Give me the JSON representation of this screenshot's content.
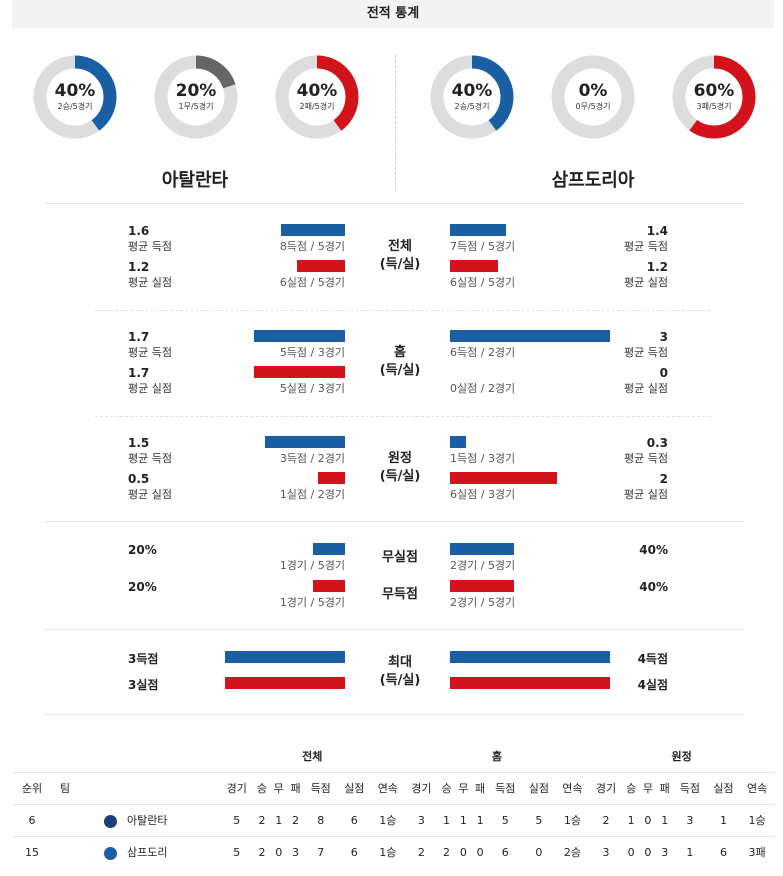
{
  "title": "전적 통계",
  "colors": {
    "blue": "#1a5fa3",
    "red": "#d2131c",
    "gray": "#666666",
    "track": "#dddddd"
  },
  "donuts": [
    {
      "pct_text": "40%",
      "sub": "2승/5경기",
      "fraction": 0.4,
      "color": "#1a5fa3"
    },
    {
      "pct_text": "20%",
      "sub": "1무/5경기",
      "fraction": 0.2,
      "color": "#666666"
    },
    {
      "pct_text": "40%",
      "sub": "2패/5경기",
      "fraction": 0.4,
      "color": "#d2131c"
    },
    {
      "pct_text": "40%",
      "sub": "2승/5경기",
      "fraction": 0.4,
      "color": "#1a5fa3"
    },
    {
      "pct_text": "0%",
      "sub": "0무/5경기",
      "fraction": 0.0,
      "color": "#666666"
    },
    {
      "pct_text": "60%",
      "sub": "3패/5경기",
      "fraction": 0.6,
      "color": "#d2131c"
    }
  ],
  "teams": {
    "home": "아탈란타",
    "away": "삼프도리아"
  },
  "sections": {
    "overall": {
      "mid1": "전체",
      "mid2": "(득/실)",
      "home": {
        "score_val": "1.6",
        "score_lbl": "평균 득점",
        "score_cap": "8득점 / 5경기",
        "score_frac": 0.4,
        "concede_val": "1.2",
        "concede_lbl": "평균 실점",
        "concede_cap": "6실점 / 5경기",
        "concede_frac": 0.3
      },
      "away": {
        "score_val": "1.4",
        "score_lbl": "평균 득점",
        "score_cap": "7득점 / 5경기",
        "score_frac": 0.35,
        "concede_val": "1.2",
        "concede_lbl": "평균 실점",
        "concede_cap": "6실점 / 5경기",
        "concede_frac": 0.3
      }
    },
    "home_games": {
      "mid1": "홈",
      "mid2": "(득/실)",
      "home": {
        "score_val": "1.7",
        "score_lbl": "평균 득점",
        "score_cap": "5득점 / 3경기",
        "score_frac": 0.57,
        "concede_val": "1.7",
        "concede_lbl": "평균 실점",
        "concede_cap": "5실점 / 3경기",
        "concede_frac": 0.57
      },
      "away": {
        "score_val": "3",
        "score_lbl": "평균 득점",
        "score_cap": "6득점 / 2경기",
        "score_frac": 1.0,
        "concede_val": "0",
        "concede_lbl": "평균 실점",
        "concede_cap": "0실점 / 2경기",
        "concede_frac": 0.0
      }
    },
    "away_games": {
      "mid1": "원정",
      "mid2": "(득/실)",
      "home": {
        "score_val": "1.5",
        "score_lbl": "평균 득점",
        "score_cap": "3득점 / 2경기",
        "score_frac": 0.5,
        "concede_val": "0.5",
        "concede_lbl": "평균 실점",
        "concede_cap": "1실점 / 2경기",
        "concede_frac": 0.17
      },
      "away": {
        "score_val": "0.3",
        "score_lbl": "평균 득점",
        "score_cap": "1득점 / 3경기",
        "score_frac": 0.1,
        "concede_val": "2",
        "concede_lbl": "평균 실점",
        "concede_cap": "6실점 / 3경기",
        "concede_frac": 0.67
      }
    },
    "clean": {
      "mid_a": "무실점",
      "mid_b": "무득점",
      "home": {
        "a_val": "20%",
        "a_cap": "1경기 / 5경기",
        "a_frac": 0.2,
        "b_val": "20%",
        "b_cap": "1경기 / 5경기",
        "b_frac": 0.2
      },
      "away": {
        "a_val": "40%",
        "a_cap": "2경기 / 5경기",
        "a_frac": 0.4,
        "b_val": "40%",
        "b_cap": "2경기 / 5경기",
        "b_frac": 0.4
      }
    },
    "max": {
      "mid1": "최대",
      "mid2": "(득/실)",
      "home": {
        "score": "3득점",
        "concede": "3실점",
        "score_frac": 0.75,
        "concede_frac": 0.75
      },
      "away": {
        "score": "4득점",
        "concede": "4실점",
        "score_frac": 1.0,
        "concede_frac": 1.0
      }
    }
  },
  "table": {
    "groups": [
      "전체",
      "홈",
      "원정"
    ],
    "col_rank": "순위",
    "col_team": "팀",
    "cols": [
      "경기",
      "승",
      "무",
      "패",
      "득점",
      "실점",
      "연속"
    ],
    "rows": [
      {
        "rank": "6",
        "team": "아탈란타",
        "logo_color": "#1a3f7a",
        "overall": [
          "5",
          "2",
          "1",
          "2",
          "8",
          "6",
          "1승"
        ],
        "home": [
          "3",
          "1",
          "1",
          "1",
          "5",
          "5",
          "1승"
        ],
        "away": [
          "2",
          "1",
          "0",
          "1",
          "3",
          "1",
          "1승"
        ]
      },
      {
        "rank": "15",
        "team": "삼프도리",
        "logo_color": "#1a5fa3",
        "overall": [
          "5",
          "2",
          "0",
          "3",
          "7",
          "6",
          "1승"
        ],
        "home": [
          "2",
          "2",
          "0",
          "0",
          "6",
          "0",
          "2승"
        ],
        "away": [
          "3",
          "0",
          "0",
          "3",
          "1",
          "6",
          "3패"
        ]
      }
    ]
  }
}
